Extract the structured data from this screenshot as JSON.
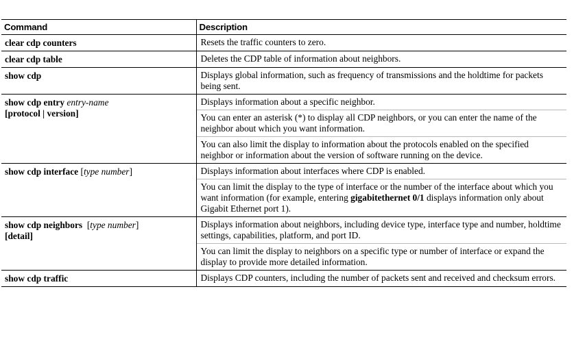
{
  "table": {
    "headers": {
      "command": "Command",
      "description": "Description"
    },
    "rows": [
      {
        "cmd": "clear cdp counters",
        "desc": [
          "Resets the traffic counters to zero."
        ]
      },
      {
        "cmd": "clear cdp table",
        "desc": [
          "Deletes the CDP table of information about neighbors."
        ]
      },
      {
        "cmd": "show cdp",
        "desc": [
          "Displays global information, such as frequency of transmissions and the holdtime for packets being sent."
        ]
      },
      {
        "cmd": "show cdp entry",
        "arg": "entry-name",
        "line2": "[protocol | version]",
        "desc": [
          "Displays information about a specific neighbor.",
          "You can enter an asterisk (*) to display all CDP neighbors, or you can enter the name of the neighbor about which you want information.",
          "You can also limit the display to information about the protocols enabled on the specified neighbor or information about the version of software running on the device."
        ]
      },
      {
        "cmd": "show cdp interface",
        "open": "[",
        "arg": "type number",
        "close": "]",
        "desc": [
          "Displays information about interfaces where CDP is enabled.",
          {
            "before": "You can limit the display to the type of interface or the number of the interface about which you want information (for example, entering ",
            "bold": "gigabitethernet 0/1",
            "after": " displays information only about Gigabit Ethernet port 1)."
          }
        ]
      },
      {
        "cmd": "show cdp neighbors",
        "open": "[",
        "arg": "type number",
        "close": "]",
        "line2": "[detail]",
        "desc": [
          "Displays information about neighbors, including device type, interface type and number, holdtime settings, capabilities, platform, and port ID.",
          "You can limit the display to neighbors on a specific type or number of interface or expand the display to provide more detailed information."
        ]
      },
      {
        "cmd": "show cdp traffic",
        "desc": [
          "Displays CDP counters, including the number of packets sent and received and checksum errors."
        ]
      }
    ]
  }
}
